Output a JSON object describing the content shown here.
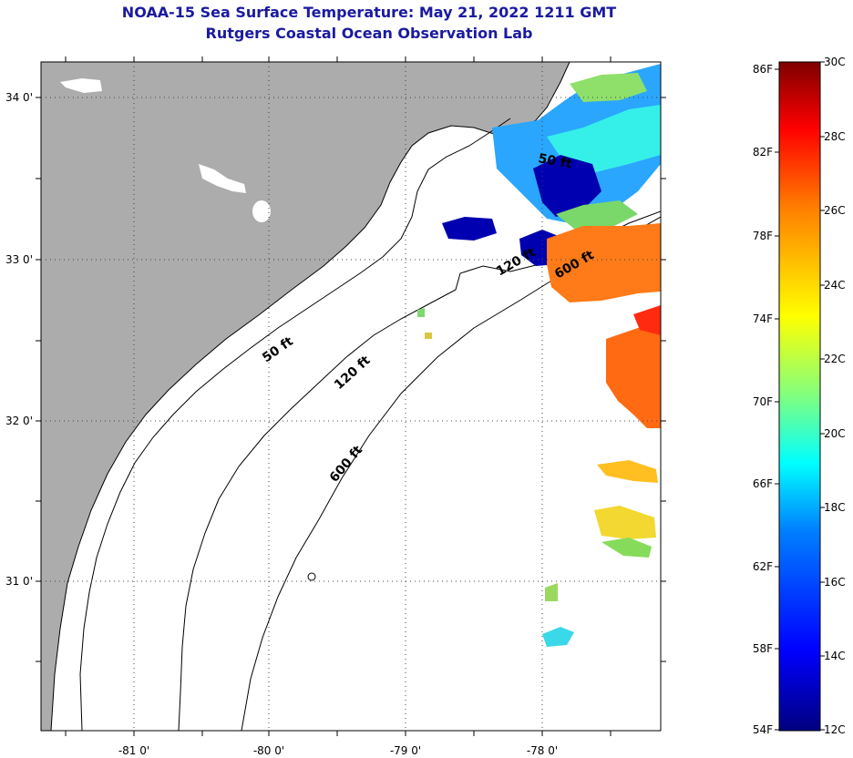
{
  "header": {
    "title": "NOAA-15 Sea Surface Temperature:  May 21, 2022 1211 GMT",
    "subtitle": "Rutgers Coastal Ocean Observation Lab"
  },
  "map": {
    "lat_labels": [
      "34 0'",
      "33 0'",
      "32 0'",
      "31 0'"
    ],
    "lon_labels": [
      "-81 0'",
      "-80 0'",
      "-79 0'",
      "-78 0'"
    ],
    "contour_labels": [
      "50 ft",
      "120 ft",
      "600 ft",
      "50 ft",
      "120 ft",
      "600 ft"
    ],
    "colors": {
      "land": "#acacac",
      "ocean": "#ffffff",
      "coast": "#000000",
      "grid": "#444444"
    }
  },
  "colorbar": {
    "fahrenheit_labels": [
      "86F",
      "82F",
      "78F",
      "74F",
      "70F",
      "66F",
      "62F",
      "58F",
      "54F"
    ],
    "celsius_labels": [
      "30C",
      "28C",
      "26C",
      "24C",
      "22C",
      "20C",
      "18C",
      "16C",
      "14C",
      "12C"
    ],
    "colors": [
      "#00007f",
      "#0000ff",
      "#0080ff",
      "#00ffff",
      "#80ff80",
      "#ffff00",
      "#ff8000",
      "#ff0000",
      "#7f0000"
    ]
  }
}
